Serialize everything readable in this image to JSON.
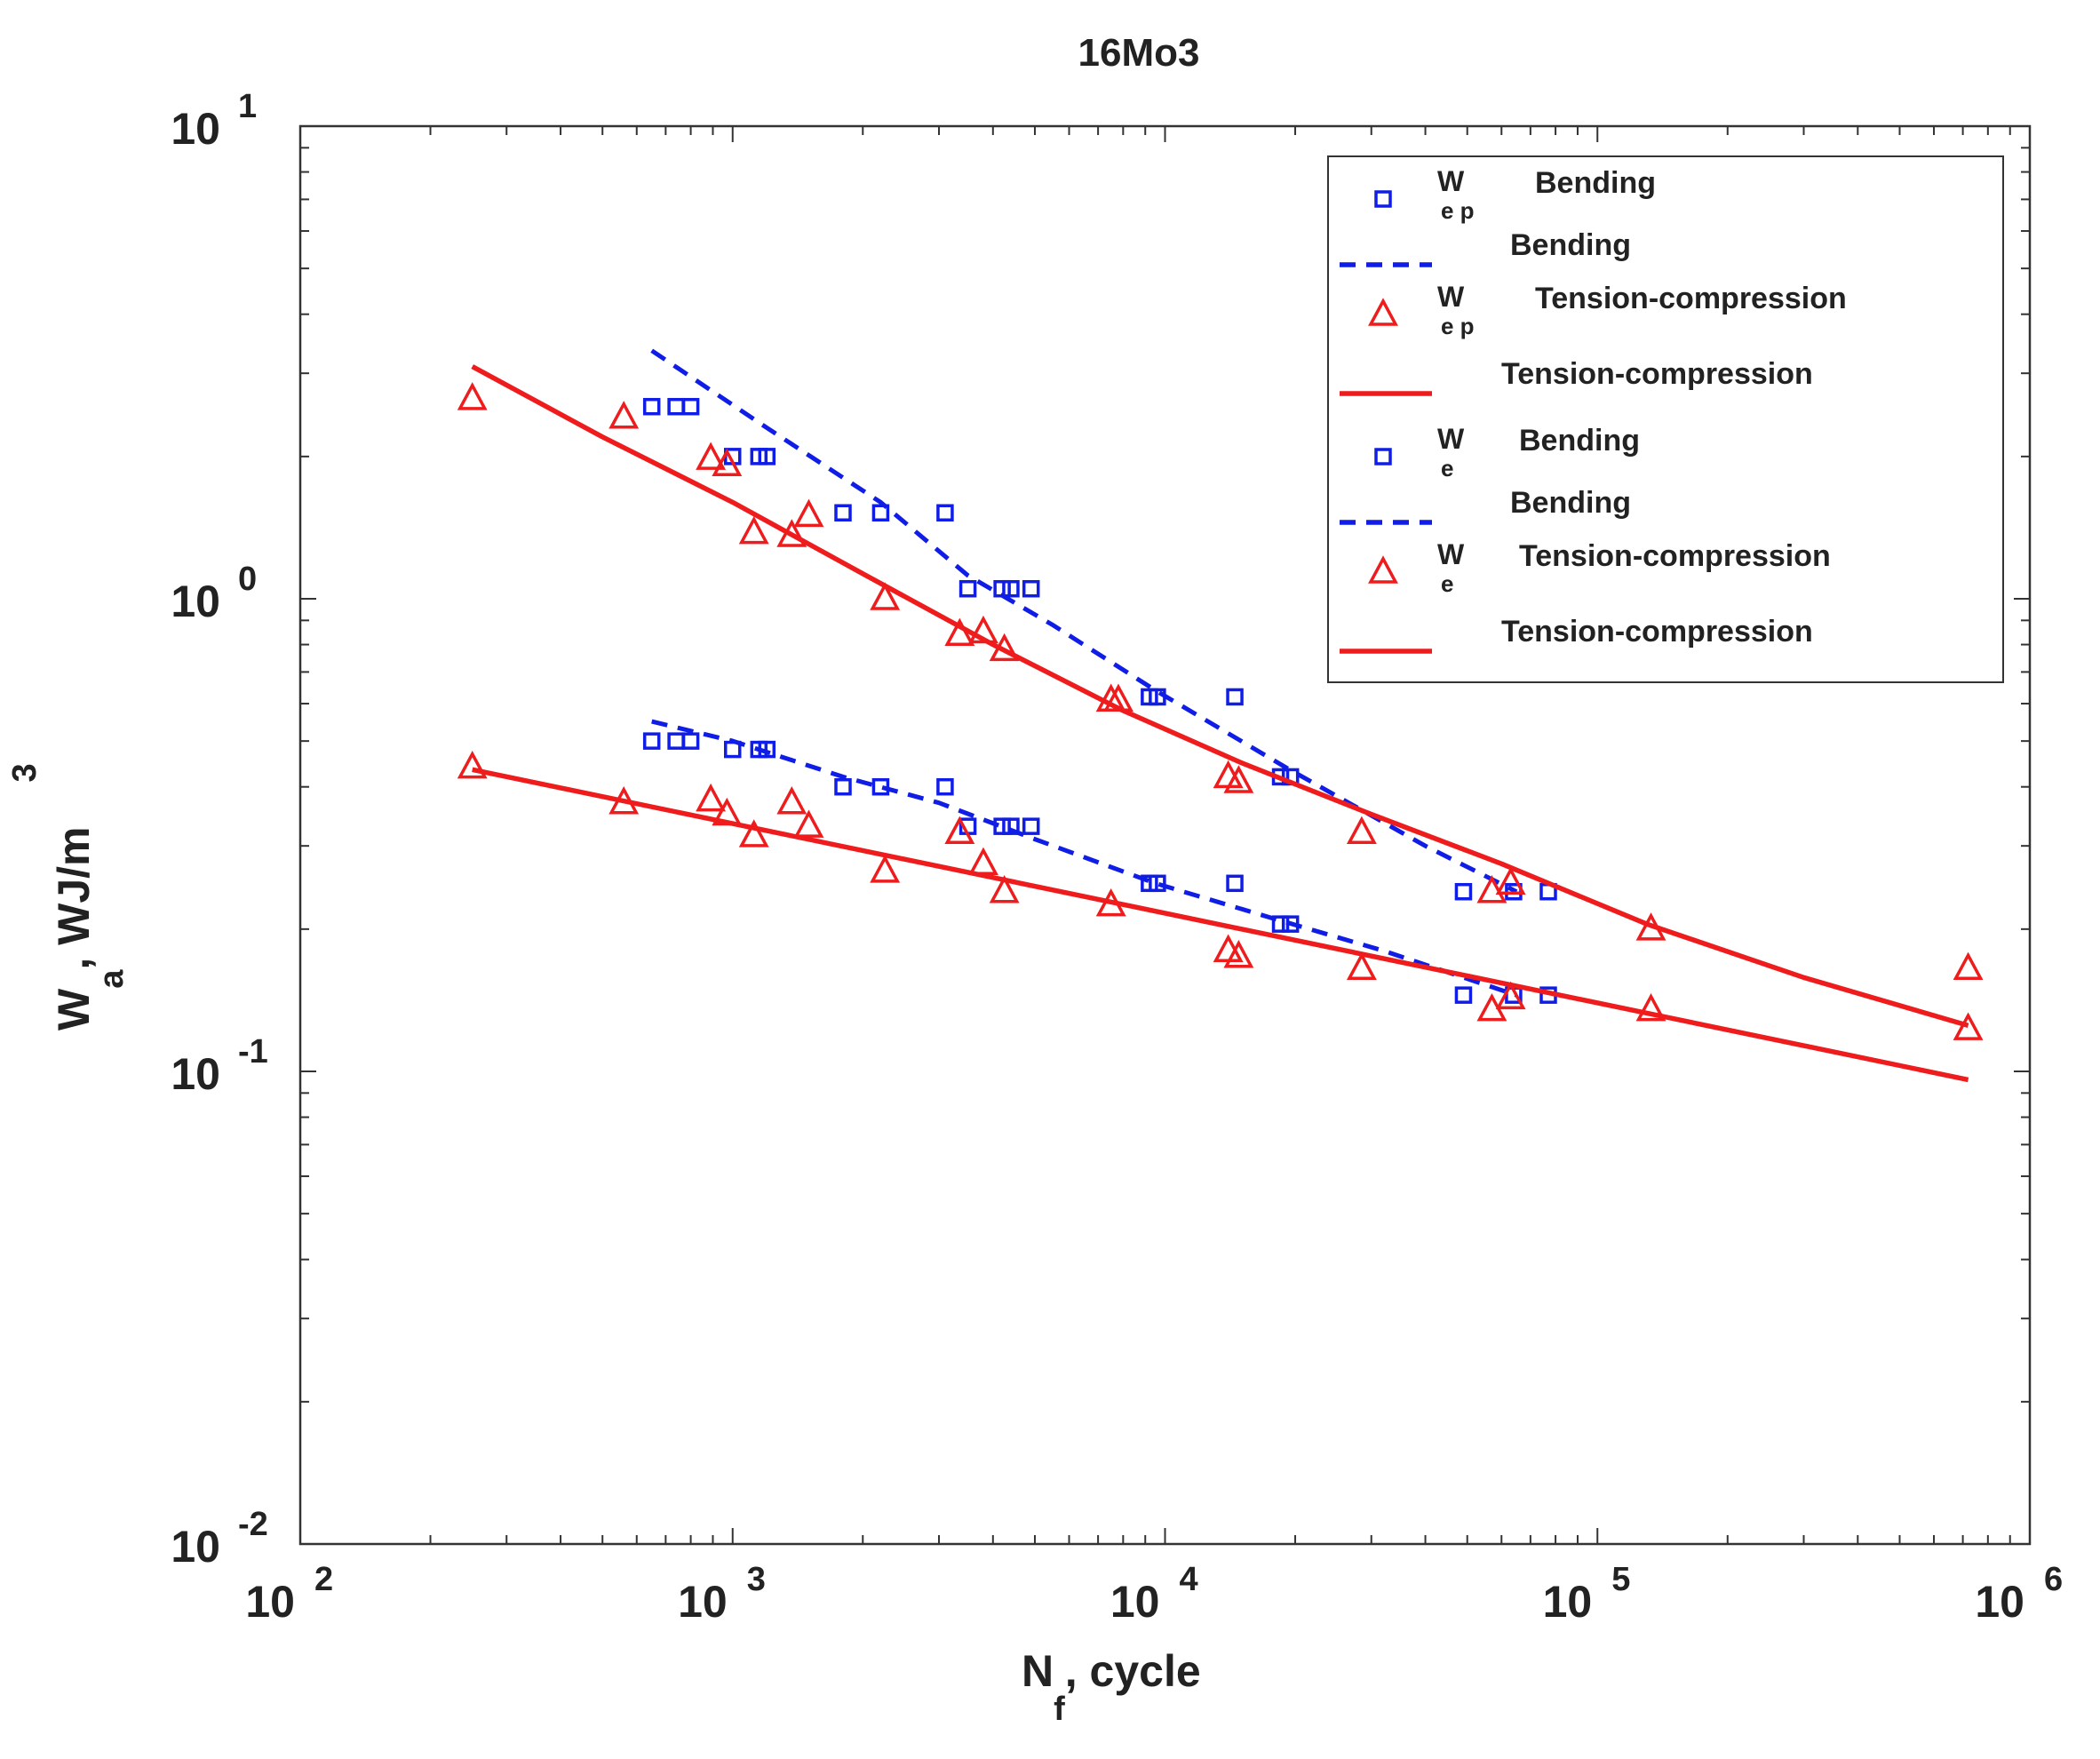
{
  "colors": {
    "blue": "#0f1de6",
    "red": "#ee1c1c",
    "axis": "#333333",
    "text": "#222222"
  },
  "chart_data": {
    "type": "scatter",
    "title": "16Mo3",
    "xscale": "log",
    "yscale": "log",
    "xlim": [
      100,
      1000000
    ],
    "ylim": [
      0.01,
      10
    ],
    "x_ticks": [
      {
        "value": 100,
        "base": "10",
        "exp": "2"
      },
      {
        "value": 1000,
        "base": "10",
        "exp": "3"
      },
      {
        "value": 10000,
        "base": "10",
        "exp": "4"
      },
      {
        "value": 100000,
        "base": "10",
        "exp": "5"
      },
      {
        "value": 1000000,
        "base": "10",
        "exp": "6"
      }
    ],
    "y_ticks": [
      {
        "value": 10,
        "base": "10",
        "exp": "1"
      },
      {
        "value": 1,
        "base": "10",
        "exp": "0"
      },
      {
        "value": 0.1,
        "base": "10",
        "exp": "-1"
      },
      {
        "value": 0.01,
        "base": "10",
        "exp": "-2"
      }
    ],
    "xlabel": {
      "main": "N",
      "sub": "f",
      "rest": ", cycle"
    },
    "ylabel": {
      "main": "W",
      "sub": "a",
      "rest": ",  WJ/m",
      "sup": "3"
    },
    "legend_position": "top-right",
    "series": [
      {
        "name": "Wep Bending points",
        "kind": "points",
        "marker": "square",
        "color": "blue",
        "legend": {
          "main": "W",
          "sub": "e p",
          "text": "Bending"
        },
        "points": [
          [
            650,
            2.55
          ],
          [
            740,
            2.55
          ],
          [
            800,
            2.55
          ],
          [
            1000,
            2.0
          ],
          [
            1150,
            2.0
          ],
          [
            1200,
            2.0
          ],
          [
            1800,
            1.52
          ],
          [
            2200,
            1.52
          ],
          [
            3100,
            1.52
          ],
          [
            3500,
            1.05
          ],
          [
            4200,
            1.05
          ],
          [
            4400,
            1.05
          ],
          [
            4900,
            1.05
          ],
          [
            9200,
            0.62
          ],
          [
            9600,
            0.62
          ],
          [
            14500,
            0.62
          ],
          [
            18500,
            0.42
          ],
          [
            19500,
            0.42
          ],
          [
            49000,
            0.24
          ],
          [
            64000,
            0.24
          ],
          [
            77000,
            0.24
          ]
        ]
      },
      {
        "name": "Wep Bending fit",
        "kind": "line",
        "dash": true,
        "color": "blue",
        "legend": {
          "main": "",
          "sub": "",
          "text": "Bending"
        },
        "points": [
          [
            650,
            3.35
          ],
          [
            1200,
            2.3
          ],
          [
            2200,
            1.6
          ],
          [
            3500,
            1.12
          ],
          [
            5500,
            0.88
          ],
          [
            9500,
            0.64
          ],
          [
            19000,
            0.44
          ],
          [
            40000,
            0.3
          ],
          [
            65000,
            0.24
          ]
        ]
      },
      {
        "name": "Wep Tension-compression points",
        "kind": "points",
        "marker": "triangle",
        "color": "red",
        "legend": {
          "main": "W",
          "sub": "e p",
          "text": "Tension-compression"
        },
        "points": [
          [
            250,
            2.65
          ],
          [
            560,
            2.42
          ],
          [
            890,
            1.98
          ],
          [
            970,
            1.92
          ],
          [
            1120,
            1.38
          ],
          [
            1370,
            1.36
          ],
          [
            1500,
            1.5
          ],
          [
            2250,
            1.0
          ],
          [
            3350,
            0.84
          ],
          [
            3800,
            0.85
          ],
          [
            4250,
            0.78
          ],
          [
            7500,
            0.61
          ],
          [
            7800,
            0.61
          ],
          [
            14000,
            0.42
          ],
          [
            14800,
            0.41
          ],
          [
            28500,
            0.32
          ],
          [
            57000,
            0.24
          ],
          [
            63000,
            0.25
          ],
          [
            133000,
            0.2
          ],
          [
            720000,
            0.165
          ]
        ]
      },
      {
        "name": "Wep Tension-compression fit",
        "kind": "line",
        "dash": false,
        "color": "red",
        "legend": {
          "main": "",
          "sub": "",
          "text": "Tension-compression"
        },
        "points": [
          [
            250,
            3.1
          ],
          [
            500,
            2.2
          ],
          [
            1000,
            1.6
          ],
          [
            2000,
            1.13
          ],
          [
            4000,
            0.8
          ],
          [
            8000,
            0.58
          ],
          [
            15000,
            0.45
          ],
          [
            30000,
            0.35
          ],
          [
            60000,
            0.275
          ],
          [
            130000,
            0.205
          ],
          [
            300000,
            0.158
          ],
          [
            720000,
            0.125
          ]
        ]
      },
      {
        "name": "We Bending points",
        "kind": "points",
        "marker": "square",
        "color": "blue",
        "legend": {
          "main": "W",
          "sub": "e",
          "text": "Bending"
        },
        "points": [
          [
            650,
            0.5
          ],
          [
            740,
            0.5
          ],
          [
            800,
            0.5
          ],
          [
            1000,
            0.48
          ],
          [
            1150,
            0.48
          ],
          [
            1200,
            0.48
          ],
          [
            1800,
            0.4
          ],
          [
            2200,
            0.4
          ],
          [
            3100,
            0.4
          ],
          [
            3500,
            0.33
          ],
          [
            4200,
            0.33
          ],
          [
            4400,
            0.33
          ],
          [
            4900,
            0.33
          ],
          [
            9200,
            0.25
          ],
          [
            9600,
            0.25
          ],
          [
            14500,
            0.25
          ],
          [
            18500,
            0.205
          ],
          [
            19500,
            0.205
          ],
          [
            49000,
            0.145
          ],
          [
            64000,
            0.145
          ],
          [
            77000,
            0.145
          ]
        ]
      },
      {
        "name": "We Bending fit",
        "kind": "line",
        "dash": true,
        "color": "blue",
        "legend": {
          "main": "",
          "sub": "",
          "text": "Bending"
        },
        "points": [
          [
            650,
            0.55
          ],
          [
            1000,
            0.5
          ],
          [
            1800,
            0.42
          ],
          [
            3000,
            0.37
          ],
          [
            5000,
            0.31
          ],
          [
            9500,
            0.25
          ],
          [
            18000,
            0.21
          ],
          [
            32000,
            0.18
          ],
          [
            65000,
            0.145
          ]
        ]
      },
      {
        "name": "We Tension-compression points",
        "kind": "points",
        "marker": "triangle",
        "color": "red",
        "legend": {
          "main": "W",
          "sub": "e",
          "text": "Tension-compression"
        },
        "points": [
          [
            250,
            0.44
          ],
          [
            560,
            0.37
          ],
          [
            890,
            0.375
          ],
          [
            970,
            0.35
          ],
          [
            1120,
            0.315
          ],
          [
            1370,
            0.37
          ],
          [
            1500,
            0.33
          ],
          [
            2250,
            0.265
          ],
          [
            3350,
            0.32
          ],
          [
            3800,
            0.275
          ],
          [
            4250,
            0.24
          ],
          [
            7500,
            0.225
          ],
          [
            14000,
            0.18
          ],
          [
            14800,
            0.175
          ],
          [
            28500,
            0.165
          ],
          [
            57000,
            0.135
          ],
          [
            63000,
            0.143
          ],
          [
            133000,
            0.135
          ],
          [
            720000,
            0.123
          ]
        ]
      },
      {
        "name": "We Tension-compression fit",
        "kind": "line",
        "dash": false,
        "color": "red",
        "legend": {
          "main": "",
          "sub": "",
          "text": "Tension-compression"
        },
        "points": [
          [
            250,
            0.435
          ],
          [
            720000,
            0.096
          ]
        ]
      }
    ]
  }
}
